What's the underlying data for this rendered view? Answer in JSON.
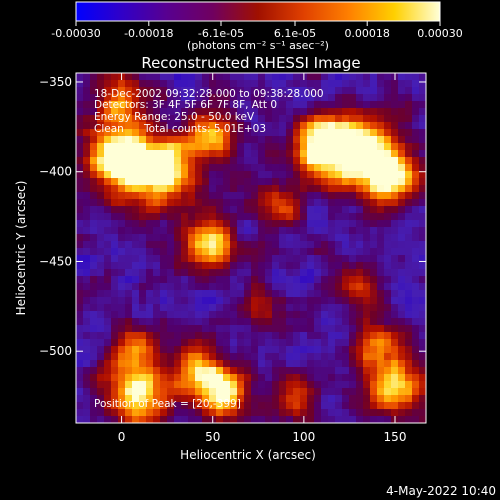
{
  "chart_data": {
    "type": "heatmap",
    "title": "Reconstructed RHESSI Image",
    "xlabel": "Heliocentric X (arcsec)",
    "ylabel": "Heliocentric Y (arcsec)",
    "xlim": [
      -25,
      167
    ],
    "ylim": [
      -540,
      -345
    ],
    "x_ticks": [
      0,
      50,
      100,
      150
    ],
    "y_ticks": [
      -350,
      -400,
      -450,
      -500
    ],
    "grid": false,
    "colorbar": {
      "min": -0.0003,
      "max": 0.0003,
      "tick_labels": [
        "-0.00030",
        "-0.00018",
        "-6.1e-05",
        "6.1e-05",
        "0.00018",
        "0.00030"
      ],
      "tick_values": [
        -0.0003,
        -0.00018,
        -6.1e-05,
        6.1e-05,
        0.00018,
        0.0003
      ],
      "label": "(photons cm⁻² s⁻¹ asec⁻²)",
      "colors": [
        "#0000ff",
        "#3000c8",
        "#580090",
        "#700060",
        "#a01000",
        "#e04000",
        "#ff8000",
        "#ffd000",
        "#ffffd8"
      ]
    },
    "annotations": {
      "time_range": "18-Dec-2002 09:32:28.000 to 09:38:28.000",
      "detectors": "Detectors: 3F 4F 5F 6F 7F 8F, Att 0",
      "energy_range": "Energy Range: 25.0 - 50.0 keV",
      "method": "Clean",
      "total_counts": "Total counts: 5.01E+03",
      "peak": "Position of Peak = [20,-399]"
    },
    "peak": [
      20,
      -399
    ],
    "emission_blobs": [
      {
        "x": 130,
        "y": -390,
        "sigma": 14,
        "amp": 1.0
      },
      {
        "x": 108,
        "y": -385,
        "sigma": 11,
        "amp": 0.75
      },
      {
        "x": 150,
        "y": -405,
        "sigma": 10,
        "amp": 0.7
      },
      {
        "x": 20,
        "y": -399,
        "sigma": 14,
        "amp": 0.95
      },
      {
        "x": -5,
        "y": -392,
        "sigma": 12,
        "amp": 0.8
      },
      {
        "x": 50,
        "y": -380,
        "sigma": 10,
        "amp": 0.65
      },
      {
        "x": 48,
        "y": -440,
        "sigma": 10,
        "amp": 0.75
      },
      {
        "x": 0,
        "y": -360,
        "sigma": 10,
        "amp": 0.55
      },
      {
        "x": 85,
        "y": -420,
        "sigma": 9,
        "amp": 0.45
      },
      {
        "x": 5,
        "y": -500,
        "sigma": 10,
        "amp": 0.55
      },
      {
        "x": 10,
        "y": -525,
        "sigma": 12,
        "amp": 0.75
      },
      {
        "x": 55,
        "y": -522,
        "sigma": 10,
        "amp": 0.85
      },
      {
        "x": 40,
        "y": -508,
        "sigma": 9,
        "amp": 0.55
      },
      {
        "x": 95,
        "y": -525,
        "sigma": 9,
        "amp": 0.5
      },
      {
        "x": 150,
        "y": -520,
        "sigma": 12,
        "amp": 0.7
      },
      {
        "x": 140,
        "y": -495,
        "sigma": 9,
        "amp": 0.45
      },
      {
        "x": 130,
        "y": -465,
        "sigma": 8,
        "amp": 0.4
      },
      {
        "x": 75,
        "y": -475,
        "sigma": 8,
        "amp": 0.35
      }
    ]
  },
  "footer": {
    "timestamp": "4-May-2022 10:40"
  }
}
